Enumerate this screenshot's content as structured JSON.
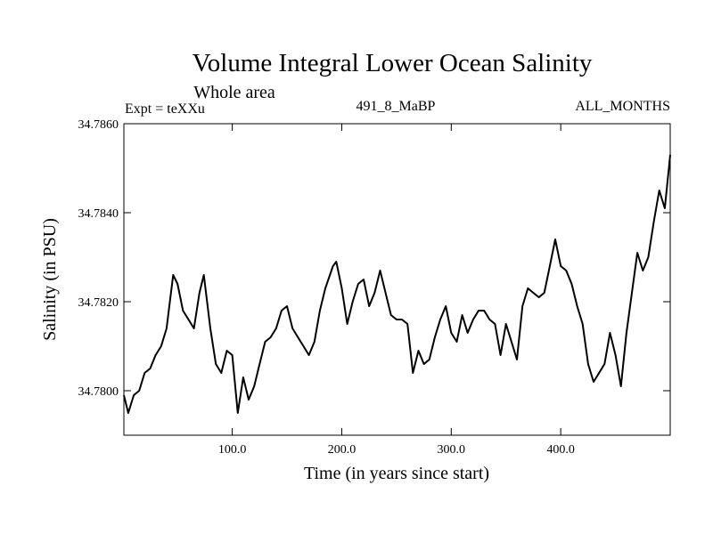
{
  "chart_data": {
    "type": "line",
    "title": "Volume Integral Lower Ocean Salinity",
    "subtitle": "Whole area",
    "left_label": "Expt = teXXu",
    "center_label": "491_8_MaBP",
    "right_label": "ALL_MONTHS",
    "xlabel": "Time (in years since start)",
    "ylabel": "Salinity (in PSU)",
    "xlim": [
      1,
      500
    ],
    "ylim": [
      34.779,
      34.786
    ],
    "x_ticks": [
      100,
      200,
      300,
      400
    ],
    "x_tick_labels": [
      "100.0",
      "200.0",
      "300.0",
      "400.0"
    ],
    "y_ticks": [
      34.78,
      34.782,
      34.784,
      34.786
    ],
    "y_tick_labels": [
      "34.7800",
      "34.7820",
      "34.7840",
      "34.7860"
    ],
    "grid": false,
    "series": [
      {
        "name": "salinity",
        "x": [
          1,
          5,
          10,
          15,
          20,
          25,
          30,
          35,
          40,
          46,
          50,
          55,
          60,
          65,
          70,
          74,
          80,
          85,
          90,
          95,
          100,
          105,
          110,
          115,
          120,
          125,
          130,
          135,
          140,
          145,
          150,
          155,
          160,
          165,
          170,
          175,
          180,
          185,
          192,
          195,
          200,
          205,
          210,
          215,
          220,
          225,
          230,
          235,
          240,
          245,
          250,
          255,
          260,
          265,
          270,
          275,
          280,
          285,
          290,
          295,
          300,
          305,
          310,
          315,
          320,
          325,
          330,
          335,
          340,
          345,
          350,
          355,
          360,
          365,
          370,
          375,
          380,
          385,
          390,
          395,
          400,
          405,
          410,
          415,
          420,
          425,
          430,
          435,
          440,
          445,
          450,
          455,
          460,
          465,
          470,
          475,
          480,
          485,
          490,
          495,
          500
        ],
        "values": [
          34.7799,
          34.7795,
          34.7799,
          34.78,
          34.7804,
          34.7805,
          34.7808,
          34.781,
          34.7814,
          34.7826,
          34.7824,
          34.7818,
          34.7816,
          34.7814,
          34.7822,
          34.7826,
          34.7814,
          34.7806,
          34.7804,
          34.7809,
          34.7808,
          34.7795,
          34.7803,
          34.7798,
          34.7801,
          34.7806,
          34.7811,
          34.7812,
          34.7814,
          34.7818,
          34.7819,
          34.7814,
          34.7812,
          34.781,
          34.7808,
          34.7811,
          34.7818,
          34.7823,
          34.7828,
          34.7829,
          34.7823,
          34.7815,
          34.782,
          34.7824,
          34.7825,
          34.7819,
          34.7822,
          34.7827,
          34.7822,
          34.7817,
          34.7816,
          34.7816,
          34.7815,
          34.7804,
          34.7809,
          34.7806,
          34.7807,
          34.7812,
          34.7816,
          34.7819,
          34.7813,
          34.7811,
          34.7817,
          34.7813,
          34.7816,
          34.7818,
          34.7818,
          34.7816,
          34.7815,
          34.7808,
          34.7815,
          34.7811,
          34.7807,
          34.7819,
          34.7823,
          34.7822,
          34.7821,
          34.7822,
          34.7828,
          34.7834,
          34.7828,
          34.7827,
          34.7824,
          34.7819,
          34.7815,
          34.7806,
          34.7802,
          34.7804,
          34.7806,
          34.7813,
          34.7808,
          34.7801,
          34.7813,
          34.7822,
          34.7831,
          34.7827,
          34.783,
          34.7838,
          34.7845,
          34.7841,
          34.7853
        ]
      }
    ]
  }
}
